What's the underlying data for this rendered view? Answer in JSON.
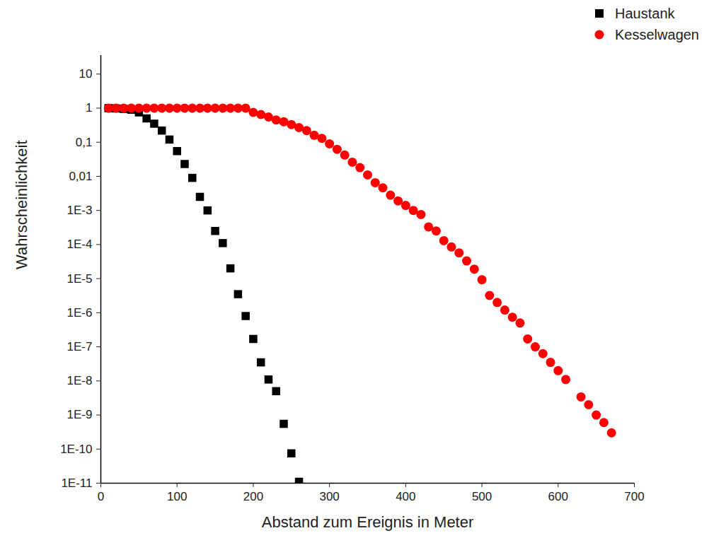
{
  "chart_data": {
    "type": "scatter",
    "xlabel": "Abstand zum Ereignis in Meter",
    "ylabel": "Wahrscheinlichkeit",
    "xlim": [
      0,
      700
    ],
    "xticks": [
      0,
      100,
      200,
      300,
      400,
      500,
      600,
      700
    ],
    "ylim": [
      1e-11,
      35
    ],
    "yticks": [
      {
        "value": 1e-11,
        "label": "1E-11"
      },
      {
        "value": 1e-10,
        "label": "1E-10"
      },
      {
        "value": 1e-09,
        "label": "1E-9"
      },
      {
        "value": 1e-08,
        "label": "1E-8"
      },
      {
        "value": 1e-07,
        "label": "1E-7"
      },
      {
        "value": 1e-06,
        "label": "1E-6"
      },
      {
        "value": 1e-05,
        "label": "1E-5"
      },
      {
        "value": 0.0001,
        "label": "1E-4"
      },
      {
        "value": 0.001,
        "label": "1E-3"
      },
      {
        "value": 0.01,
        "label": "0,01"
      },
      {
        "value": 0.1,
        "label": "0,1"
      },
      1,
      10
    ],
    "log": "y",
    "grid": false,
    "legend": "top-right",
    "series": [
      {
        "name": "Haustank",
        "color": "#000000",
        "marker": "square",
        "x": [
          10,
          20,
          30,
          40,
          50,
          60,
          70,
          80,
          90,
          100,
          110,
          120,
          130,
          140,
          150,
          160,
          170,
          180,
          190,
          200,
          210,
          220,
          230,
          240,
          250,
          260
        ],
        "values": [
          1,
          0.98,
          0.95,
          0.9,
          0.75,
          0.5,
          0.35,
          0.22,
          0.12,
          0.055,
          0.023,
          0.009,
          0.0025,
          0.001,
          0.00025,
          0.00011,
          2e-05,
          3.5e-06,
          8e-07,
          1.7e-07,
          3.5e-08,
          1.1e-08,
          5e-09,
          5.5e-10,
          7.5e-11,
          1.1e-11
        ]
      },
      {
        "name": "Kesselwagen",
        "color": "#ff0000",
        "marker": "circle",
        "x": [
          10,
          20,
          30,
          40,
          50,
          60,
          70,
          80,
          90,
          100,
          110,
          120,
          130,
          140,
          150,
          160,
          170,
          180,
          190,
          200,
          210,
          220,
          230,
          240,
          250,
          260,
          270,
          280,
          290,
          300,
          310,
          320,
          330,
          340,
          350,
          360,
          370,
          380,
          390,
          400,
          410,
          420,
          430,
          440,
          450,
          460,
          470,
          480,
          490,
          500,
          510,
          520,
          530,
          540,
          550,
          560,
          570,
          580,
          590,
          600,
          610,
          630,
          640,
          650,
          660,
          670
        ],
        "values": [
          1,
          1,
          1,
          1,
          1,
          1,
          1,
          1,
          1,
          1,
          1,
          1,
          1,
          1,
          1,
          1,
          1,
          1,
          1,
          0.75,
          0.65,
          0.55,
          0.45,
          0.4,
          0.33,
          0.27,
          0.22,
          0.16,
          0.13,
          0.09,
          0.062,
          0.042,
          0.026,
          0.018,
          0.011,
          0.0065,
          0.0046,
          0.0028,
          0.0019,
          0.0014,
          0.001,
          0.00076,
          0.00033,
          0.00025,
          0.00013,
          8.5e-05,
          5.7e-05,
          3.3e-05,
          1.9e-05,
          9.3e-06,
          3.2e-06,
          2e-06,
          1.2e-06,
          7.4e-07,
          5e-07,
          1.7e-07,
          1e-07,
          6.3e-08,
          3.5e-08,
          2e-08,
          1.1e-08,
          3.4e-09,
          2e-09,
          1e-09,
          6e-10,
          3e-10
        ]
      }
    ]
  }
}
